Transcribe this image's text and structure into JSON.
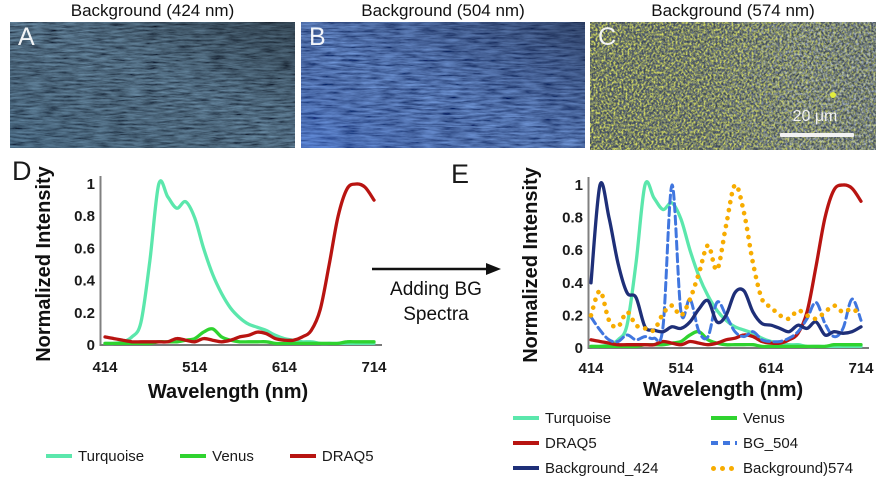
{
  "panels": {
    "a": {
      "letter": "A",
      "title": "Background (424 nm)"
    },
    "b": {
      "letter": "B",
      "title": "Background (504 nm)"
    },
    "c": {
      "letter": "C",
      "title": "Background (574 nm)",
      "scale_bar": "20 μm"
    }
  },
  "chart_labels": {
    "d": "D",
    "e": "E"
  },
  "arrow": {
    "line1": "Adding BG",
    "line2": "Spectra"
  },
  "colors": {
    "turquoise": "#5BE7AC",
    "venus": "#2FD32F",
    "draq5": "#B81411",
    "background_424": "#1E2F78",
    "bg_504": "#4076DF",
    "background_574": "#F7AC00",
    "axis": "#808080"
  },
  "chart_data": [
    {
      "id": "panel-d",
      "type": "line",
      "title": "",
      "xlabel": "Wavelength (nm)",
      "ylabel": "Normalized Intensity",
      "x_ticks": [
        414,
        514,
        614,
        714
      ],
      "y_ticks": [
        0,
        0.2,
        0.4,
        0.6,
        0.8,
        1
      ],
      "xlim": [
        414,
        714
      ],
      "ylim": [
        0,
        1
      ],
      "grid": false,
      "legend_position": "below",
      "x": [
        414,
        424,
        434,
        444,
        454,
        464,
        474,
        484,
        494,
        504,
        514,
        524,
        534,
        544,
        554,
        564,
        574,
        584,
        594,
        604,
        614,
        624,
        634,
        644,
        654,
        664,
        674,
        684,
        694,
        704,
        714
      ],
      "series": [
        {
          "name": "Turquoise",
          "color": "#5BE7AC",
          "style": "solid",
          "values": [
            0.01,
            0.01,
            0.02,
            0.05,
            0.14,
            0.52,
            1.0,
            0.92,
            0.85,
            0.89,
            0.79,
            0.6,
            0.44,
            0.32,
            0.23,
            0.17,
            0.13,
            0.11,
            0.09,
            0.06,
            0.04,
            0.03,
            0.02,
            0.02,
            0.01,
            0.01,
            0.01,
            0.01,
            0.01,
            0.01,
            0.01
          ]
        },
        {
          "name": "Venus",
          "color": "#2FD32F",
          "style": "solid",
          "values": [
            0.01,
            0.01,
            0.01,
            0.01,
            0.01,
            0.01,
            0.02,
            0.02,
            0.02,
            0.03,
            0.04,
            0.08,
            0.1,
            0.05,
            0.03,
            0.02,
            0.02,
            0.02,
            0.02,
            0.01,
            0.01,
            0.01,
            0.01,
            0.01,
            0.01,
            0.01,
            0.01,
            0.02,
            0.02,
            0.02,
            0.02
          ]
        },
        {
          "name": "DRAQ5",
          "color": "#B81411",
          "style": "solid",
          "values": [
            0.05,
            0.04,
            0.03,
            0.02,
            0.02,
            0.02,
            0.02,
            0.02,
            0.04,
            0.03,
            0.02,
            0.04,
            0.03,
            0.02,
            0.03,
            0.05,
            0.06,
            0.08,
            0.07,
            0.04,
            0.03,
            0.03,
            0.05,
            0.09,
            0.22,
            0.5,
            0.8,
            0.97,
            1.0,
            0.98,
            0.9
          ]
        }
      ]
    },
    {
      "id": "panel-e",
      "type": "line",
      "title": "",
      "xlabel": "Wavelength (nm)",
      "ylabel": "Normalized Intensity",
      "x_ticks": [
        414,
        514,
        614,
        714
      ],
      "y_ticks": [
        0,
        0.2,
        0.4,
        0.6,
        0.8,
        1
      ],
      "xlim": [
        414,
        714
      ],
      "ylim": [
        0,
        1
      ],
      "grid": false,
      "legend_position": "below",
      "x": [
        414,
        424,
        434,
        444,
        454,
        464,
        474,
        484,
        494,
        504,
        514,
        524,
        534,
        544,
        554,
        564,
        574,
        584,
        594,
        604,
        614,
        624,
        634,
        644,
        654,
        664,
        674,
        684,
        694,
        704,
        714
      ],
      "series": [
        {
          "name": "Turquoise",
          "color": "#5BE7AC",
          "style": "solid",
          "values": [
            0.01,
            0.01,
            0.02,
            0.05,
            0.14,
            0.52,
            1.0,
            0.92,
            0.85,
            0.89,
            0.79,
            0.6,
            0.44,
            0.32,
            0.23,
            0.17,
            0.13,
            0.11,
            0.09,
            0.06,
            0.04,
            0.03,
            0.02,
            0.02,
            0.01,
            0.01,
            0.01,
            0.01,
            0.01,
            0.01,
            0.01
          ]
        },
        {
          "name": "Venus",
          "color": "#2FD32F",
          "style": "solid",
          "values": [
            0.01,
            0.01,
            0.01,
            0.01,
            0.01,
            0.01,
            0.02,
            0.02,
            0.02,
            0.03,
            0.04,
            0.08,
            0.1,
            0.05,
            0.03,
            0.02,
            0.02,
            0.02,
            0.02,
            0.01,
            0.01,
            0.01,
            0.01,
            0.01,
            0.01,
            0.01,
            0.01,
            0.02,
            0.02,
            0.02,
            0.02
          ]
        },
        {
          "name": "DRAQ5",
          "color": "#B81411",
          "style": "solid",
          "values": [
            0.05,
            0.04,
            0.03,
            0.02,
            0.02,
            0.02,
            0.02,
            0.02,
            0.04,
            0.03,
            0.02,
            0.04,
            0.03,
            0.02,
            0.03,
            0.05,
            0.06,
            0.08,
            0.07,
            0.04,
            0.03,
            0.03,
            0.05,
            0.09,
            0.22,
            0.5,
            0.8,
            0.97,
            1.0,
            0.98,
            0.9
          ]
        },
        {
          "name": "BG_504",
          "color": "#4076DF",
          "style": "dashed",
          "values": [
            0.19,
            0.11,
            0.05,
            0.04,
            0.08,
            0.05,
            0.07,
            0.06,
            0.13,
            1.0,
            0.22,
            0.3,
            0.1,
            0.07,
            0.28,
            0.2,
            0.1,
            0.07,
            0.1,
            0.05,
            0.04,
            0.04,
            0.06,
            0.1,
            0.18,
            0.28,
            0.15,
            0.07,
            0.12,
            0.3,
            0.17
          ]
        },
        {
          "name": "Background_424",
          "color": "#1E2F78",
          "style": "solid",
          "values": [
            0.4,
            1.0,
            0.8,
            0.52,
            0.34,
            0.31,
            0.13,
            0.11,
            0.1,
            0.13,
            0.12,
            0.16,
            0.24,
            0.29,
            0.16,
            0.2,
            0.34,
            0.35,
            0.22,
            0.15,
            0.14,
            0.12,
            0.1,
            0.14,
            0.12,
            0.16,
            0.08,
            0.1,
            0.09,
            0.1,
            0.13
          ]
        },
        {
          "name": "Background)574",
          "color": "#F7AC00",
          "style": "dotted",
          "values": [
            0.2,
            0.35,
            0.17,
            0.13,
            0.22,
            0.14,
            0.12,
            0.11,
            0.21,
            0.26,
            0.2,
            0.3,
            0.46,
            0.63,
            0.48,
            0.75,
            1.0,
            0.83,
            0.52,
            0.3,
            0.25,
            0.2,
            0.18,
            0.23,
            0.2,
            0.18,
            0.22,
            0.26,
            0.22,
            0.24,
            0.2
          ]
        }
      ]
    }
  ],
  "legend_d": {
    "items": [
      {
        "label": "Turquoise",
        "color": "#5BE7AC",
        "style": "solid"
      },
      {
        "label": "Venus",
        "color": "#2FD32F",
        "style": "solid"
      },
      {
        "label": "DRAQ5",
        "color": "#B81411",
        "style": "solid"
      }
    ]
  },
  "legend_e": {
    "items": [
      {
        "label": "Turquoise",
        "color": "#5BE7AC",
        "style": "solid"
      },
      {
        "label": "Venus",
        "color": "#2FD32F",
        "style": "solid"
      },
      {
        "label": "DRAQ5",
        "color": "#B81411",
        "style": "solid"
      },
      {
        "label": "BG_504",
        "color": "#4076DF",
        "style": "dashed"
      },
      {
        "label": "Background_424",
        "color": "#1E2F78",
        "style": "solid"
      },
      {
        "label": "Background)574",
        "color": "#F7AC00",
        "style": "dotted"
      }
    ]
  }
}
